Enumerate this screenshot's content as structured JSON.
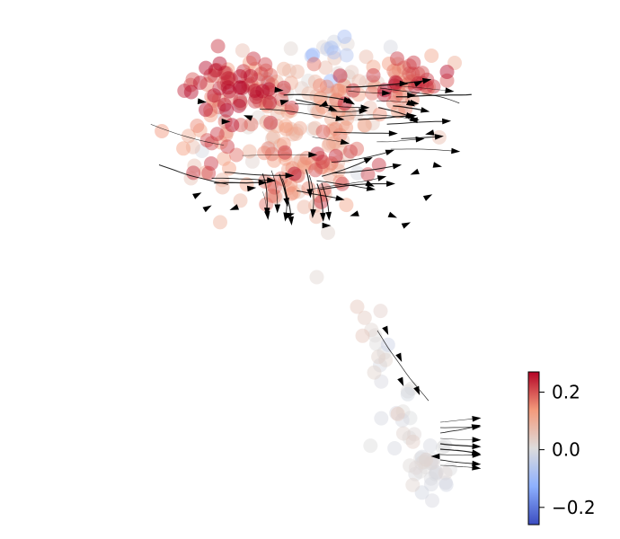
{
  "chart_data": {
    "type": "scatter",
    "title": "",
    "xlabel": "",
    "ylabel": "",
    "axes_visible": false,
    "grid": false,
    "xlim": [
      0,
      10
    ],
    "ylim": [
      0,
      10
    ],
    "overlay": "velocity-streamlines-with-arrowheads",
    "colorbar": {
      "cmap": "coolwarm",
      "vmin": -0.26,
      "vmax": 0.27,
      "ticks": [
        {
          "value": 0.2,
          "label": "0.2"
        },
        {
          "value": 0.0,
          "label": "0.0"
        },
        {
          "value": -0.2,
          "label": "−0.2"
        }
      ],
      "placement": "bottom-right"
    },
    "clusters": [
      {
        "cx": 3.2,
        "cy": 9.1,
        "sx": 0.55,
        "sy": 0.35,
        "n": 70,
        "vmean": 0.22,
        "vsd": 0.05
      },
      {
        "cx": 5.3,
        "cy": 9.1,
        "sx": 0.9,
        "sy": 0.35,
        "n": 70,
        "vmean": 0.09,
        "vsd": 0.06
      },
      {
        "cx": 7.2,
        "cy": 9.2,
        "sx": 0.45,
        "sy": 0.25,
        "n": 45,
        "vmean": 0.18,
        "vsd": 0.06
      },
      {
        "cx": 4.5,
        "cy": 8.3,
        "sx": 1.0,
        "sy": 0.45,
        "n": 70,
        "vmean": 0.1,
        "vsd": 0.06
      },
      {
        "cx": 4.6,
        "cy": 7.3,
        "sx": 0.75,
        "sy": 0.35,
        "n": 55,
        "vmean": 0.15,
        "vsd": 0.06
      },
      {
        "cx": 2.6,
        "cy": 7.9,
        "sx": 0.35,
        "sy": 0.35,
        "n": 14,
        "vmean": 0.11,
        "vsd": 0.08
      },
      {
        "cx": 5.5,
        "cy": 10.0,
        "sx": 0.5,
        "sy": 0.12,
        "n": 12,
        "vmean": -0.04,
        "vsd": 0.04
      },
      {
        "cx": 6.35,
        "cy": 3.9,
        "sx": 0.18,
        "sy": 0.5,
        "n": 14,
        "vmean": 0.02,
        "vsd": 0.02
      },
      {
        "cx": 6.95,
        "cy": 2.4,
        "sx": 0.2,
        "sy": 0.5,
        "n": 16,
        "vmean": 0.0,
        "vsd": 0.015
      },
      {
        "cx": 7.45,
        "cy": 1.45,
        "sx": 0.28,
        "sy": 0.3,
        "n": 28,
        "vmean": 0.0,
        "vsd": 0.01
      }
    ],
    "points": [
      {
        "x": 5.05,
        "y": 5.3,
        "v": 0.02
      },
      {
        "x": 5.3,
        "y": 6.2,
        "v": 0.03
      },
      {
        "x": 5.95,
        "y": 4.7,
        "v": 0.05
      },
      {
        "x": 2.25,
        "y": 7.3,
        "v": 0.06
      },
      {
        "x": 3.1,
        "y": 7.5,
        "v": 0.13
      },
      {
        "x": 2.7,
        "y": 7.6,
        "v": 0.23
      },
      {
        "x": 3.35,
        "y": 6.85,
        "v": 0.09
      }
    ]
  }
}
